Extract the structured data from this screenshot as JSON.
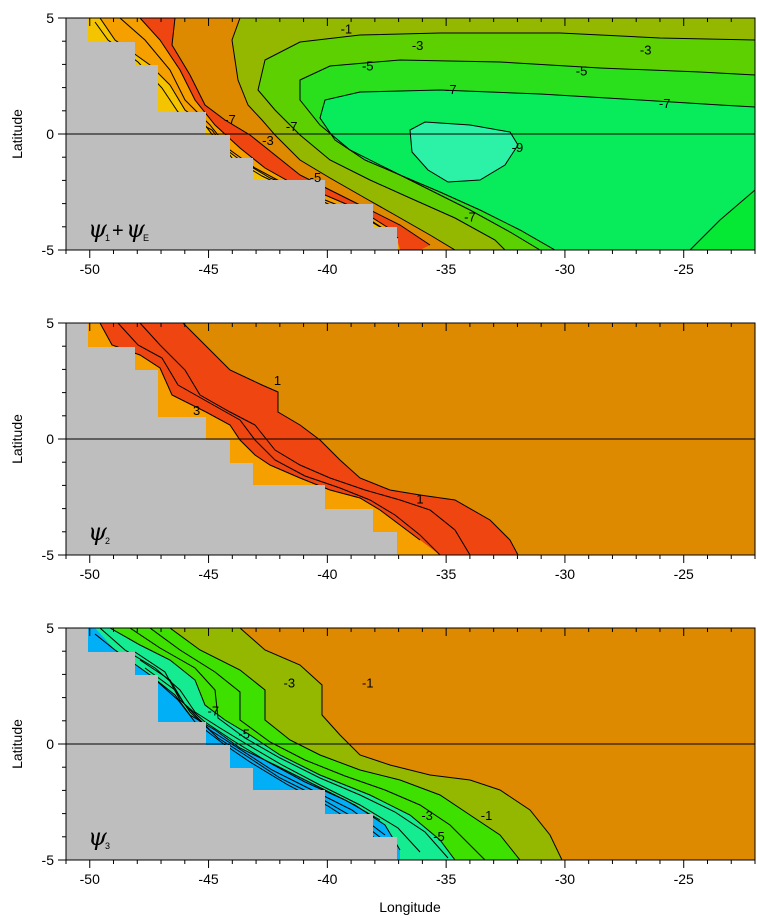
{
  "xlabel": "Longitude",
  "chart_data": [
    {
      "type": "contour",
      "panel": "psi1+psiE",
      "ylabel": "Latitude",
      "xlim": [
        -51,
        -22
      ],
      "ylim": [
        -5,
        5
      ],
      "xticks": [
        "-50",
        "-45",
        "-40",
        "-35",
        "-30",
        "-25"
      ],
      "xtick_values": [
        -50,
        -45,
        -40,
        -35,
        -30,
        -25
      ],
      "yticks": [
        "5",
        "0",
        "-5"
      ],
      "ytick_values": [
        5,
        0,
        -5
      ],
      "land_color": "#bebebe",
      "contour_labels": [
        {
          "text": "-1",
          "lon": -39.2,
          "lat": 4.5
        },
        {
          "text": "-3",
          "lon": -36.2,
          "lat": 3.8
        },
        {
          "text": "-3",
          "lon": -26.6,
          "lat": 3.6
        },
        {
          "text": "-5",
          "lon": -38.3,
          "lat": 2.9
        },
        {
          "text": "-5",
          "lon": -29.3,
          "lat": 2.7
        },
        {
          "text": "-7",
          "lon": -34.8,
          "lat": 1.9
        },
        {
          "text": "-7",
          "lon": -25.8,
          "lat": 1.3
        },
        {
          "text": "-7",
          "lon": -44.1,
          "lat": 0.6
        },
        {
          "text": "-7",
          "lon": -41.5,
          "lat": 0.3
        },
        {
          "text": "-3",
          "lon": -42.5,
          "lat": -0.3
        },
        {
          "text": "-9",
          "lon": -32.0,
          "lat": -0.6
        },
        {
          "text": "-5",
          "lon": -40.5,
          "lat": -1.9
        },
        {
          "text": "-7",
          "lon": -34.0,
          "lat": -3.6
        }
      ],
      "label_psi": "ψ",
      "label_sub1": "1",
      "label_plus": "+",
      "label_psi2": "ψ",
      "label_sub2": "E"
    },
    {
      "type": "contour",
      "panel": "psi2",
      "ylabel": "Latitude",
      "xlim": [
        -51,
        -22
      ],
      "ylim": [
        -5,
        5
      ],
      "xticks": [
        "-50",
        "-45",
        "-40",
        "-35",
        "-30",
        "-25"
      ],
      "xtick_values": [
        -50,
        -45,
        -40,
        -35,
        -30,
        -25
      ],
      "yticks": [
        "5",
        "0",
        "-5"
      ],
      "ytick_values": [
        5,
        0,
        -5
      ],
      "contour_labels": [
        {
          "text": "1",
          "lon": -42.1,
          "lat": 2.5
        },
        {
          "text": "3",
          "lon": -45.5,
          "lat": 1.2
        },
        {
          "text": "1",
          "lon": -36.1,
          "lat": -2.6
        }
      ],
      "label_psi": "ψ",
      "label_sub1": "2"
    },
    {
      "type": "contour",
      "panel": "psi3",
      "ylabel": "Latitude",
      "xlim": [
        -51,
        -22
      ],
      "ylim": [
        -5,
        5
      ],
      "xticks": [
        "-50",
        "-45",
        "-40",
        "-35",
        "-30",
        "-25"
      ],
      "xtick_values": [
        -50,
        -45,
        -40,
        -35,
        -30,
        -25
      ],
      "yticks": [
        "5",
        "0",
        "-5"
      ],
      "ytick_values": [
        5,
        0,
        -5
      ],
      "contour_labels": [
        {
          "text": "-3",
          "lon": -41.6,
          "lat": 2.6
        },
        {
          "text": "-1",
          "lon": -38.3,
          "lat": 2.6
        },
        {
          "text": "-7",
          "lon": -44.8,
          "lat": 1.4
        },
        {
          "text": "-5",
          "lon": -43.5,
          "lat": 0.4
        },
        {
          "text": "-3",
          "lon": -35.8,
          "lat": -3.1
        },
        {
          "text": "-1",
          "lon": -33.3,
          "lat": -3.1
        },
        {
          "text": "-5",
          "lon": -35.3,
          "lat": -4.0
        }
      ],
      "label_psi": "ψ",
      "label_sub1": "3"
    }
  ]
}
